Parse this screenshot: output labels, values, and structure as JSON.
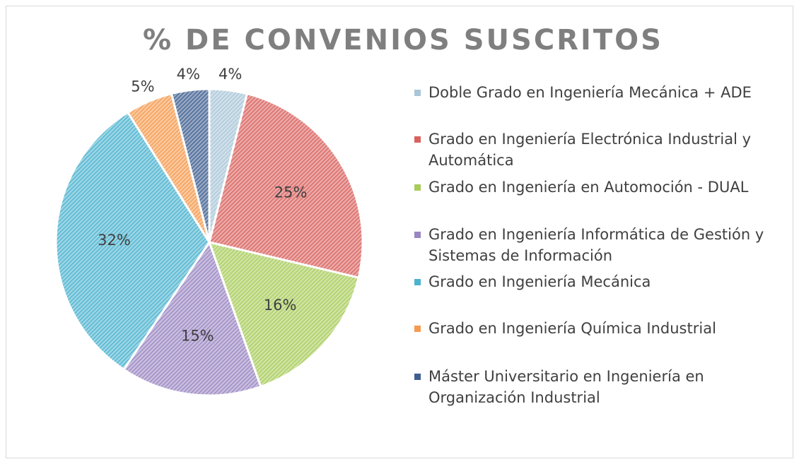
{
  "chart_data": {
    "type": "pie",
    "title": "% DE CONVENIOS SUSCRITOS",
    "categories": [
      "Doble Grado en Ingeniería Mecánica + ADE",
      "Grado en Ingeniería Electrónica Industrial y Automática",
      "Grado en Ingeniería en Automoción - DUAL",
      "Grado en Ingeniería Informática de Gestión y Sistemas de Información",
      "Grado en Ingeniería Mecánica",
      "Grado en Ingeniería Química Industrial",
      "Máster Universitario en Ingeniería en Organización Industrial"
    ],
    "values": [
      4,
      25,
      16,
      15,
      32,
      5,
      4
    ],
    "value_labels": [
      "4%",
      "25%",
      "16%",
      "15%",
      "32%",
      "5%",
      "4%"
    ],
    "colors": [
      "#a9c6d8",
      "#d9625e",
      "#a8cc5a",
      "#9a86c2",
      "#4bb3cf",
      "#f59a4e",
      "#3f5f8f"
    ],
    "legend": "right"
  }
}
